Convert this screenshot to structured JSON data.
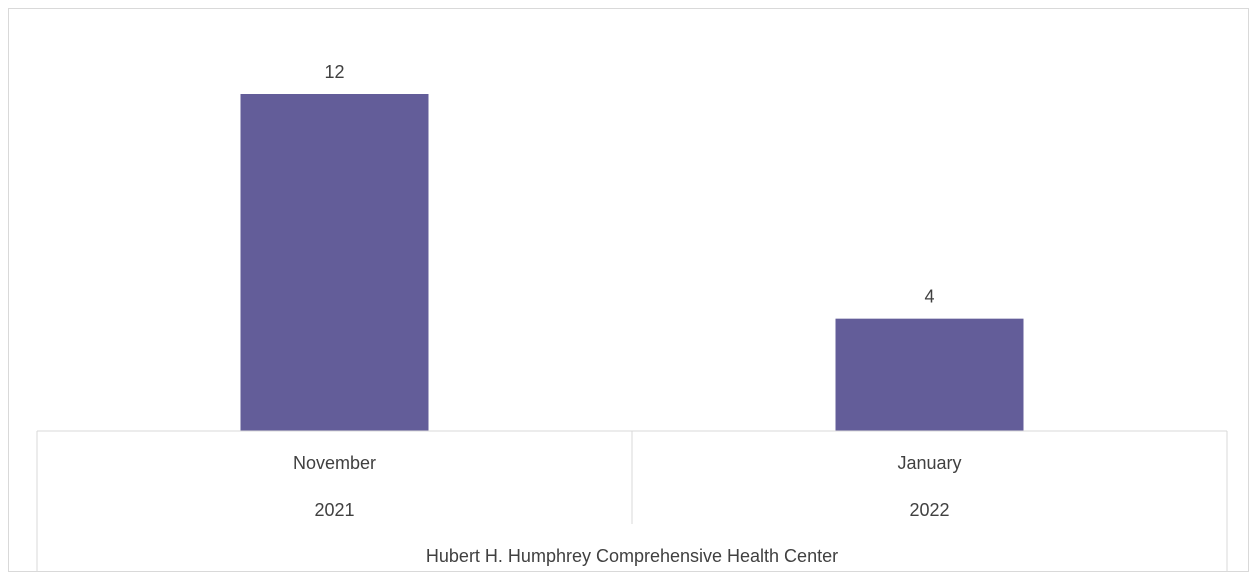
{
  "chart_data": {
    "type": "bar",
    "categories": [
      {
        "month": "November",
        "year": "2021"
      },
      {
        "month": "January",
        "year": "2022"
      }
    ],
    "group_label": "Hubert H. Humphrey Comprehensive Health Center",
    "series": [
      {
        "values": [
          12,
          4
        ],
        "data_labels": [
          "12",
          "4"
        ]
      }
    ],
    "ylim": [
      0,
      12
    ],
    "grid": false,
    "legend": "none",
    "bar_color": "#635D99",
    "axis_color": "#D9D9D9",
    "label_color": "#404040"
  }
}
